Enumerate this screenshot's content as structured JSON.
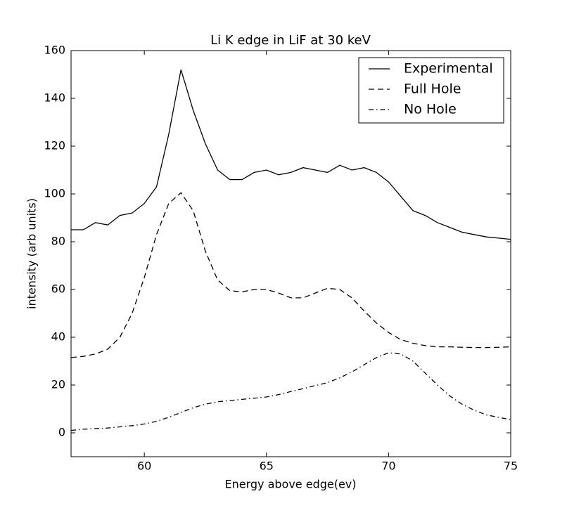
{
  "chart_data": {
    "type": "line",
    "title": "Li K edge in LiF at 30 keV",
    "x_label": "Energy above edge(ev)",
    "y_label": "intensity (arb units)",
    "xlim": [
      57,
      75
    ],
    "ylim": [
      -10,
      160
    ],
    "xticks": [
      60,
      65,
      70,
      75
    ],
    "yticks": [
      0,
      20,
      40,
      60,
      80,
      100,
      120,
      140,
      160
    ],
    "legend": "upper right",
    "x": [
      57,
      57.5,
      58,
      58.5,
      59,
      59.5,
      60,
      60.5,
      61,
      61.5,
      62,
      62.5,
      63,
      63.5,
      64,
      64.5,
      65,
      65.5,
      66,
      66.5,
      67,
      67.5,
      68,
      68.5,
      69,
      69.5,
      70,
      70.5,
      71,
      71.5,
      72,
      72.5,
      73,
      73.5,
      74,
      74.5,
      75
    ],
    "series": [
      {
        "name": "Experimental",
        "color": "#000000",
        "style": "solid",
        "values": [
          85,
          85,
          88,
          87,
          91,
          92,
          96,
          103,
          125,
          152,
          135,
          121,
          110,
          106,
          106,
          109,
          110,
          108,
          109,
          111,
          110,
          109,
          112,
          110,
          111,
          109,
          105,
          99,
          93,
          91,
          88,
          86,
          84,
          83,
          82,
          81.5,
          81
        ]
      },
      {
        "name": "Full Hole",
        "color": "#000000",
        "style": "dashed",
        "values": [
          31.5,
          32,
          33,
          35,
          40,
          50,
          65,
          83,
          96,
          100.5,
          93,
          76,
          64,
          59.5,
          59,
          60,
          60,
          58.5,
          56.5,
          56.5,
          58.5,
          60.5,
          60,
          56.5,
          51,
          46,
          42,
          39,
          37.5,
          36.5,
          36,
          36,
          35.8,
          35.7,
          35.7,
          35.8,
          36
        ]
      },
      {
        "name": "No Hole",
        "color": "#000000",
        "style": "dashdot",
        "values": [
          1,
          1.5,
          1.8,
          2,
          2.5,
          3,
          3.7,
          4.8,
          6.5,
          8.5,
          10.5,
          12,
          13,
          13.5,
          14,
          14.5,
          15,
          16,
          17.3,
          18.5,
          19.8,
          21,
          23,
          25.5,
          28.5,
          31.5,
          33.5,
          33,
          30,
          25,
          20,
          15.5,
          12,
          9.5,
          7.5,
          6.5,
          5.5
        ]
      }
    ]
  }
}
